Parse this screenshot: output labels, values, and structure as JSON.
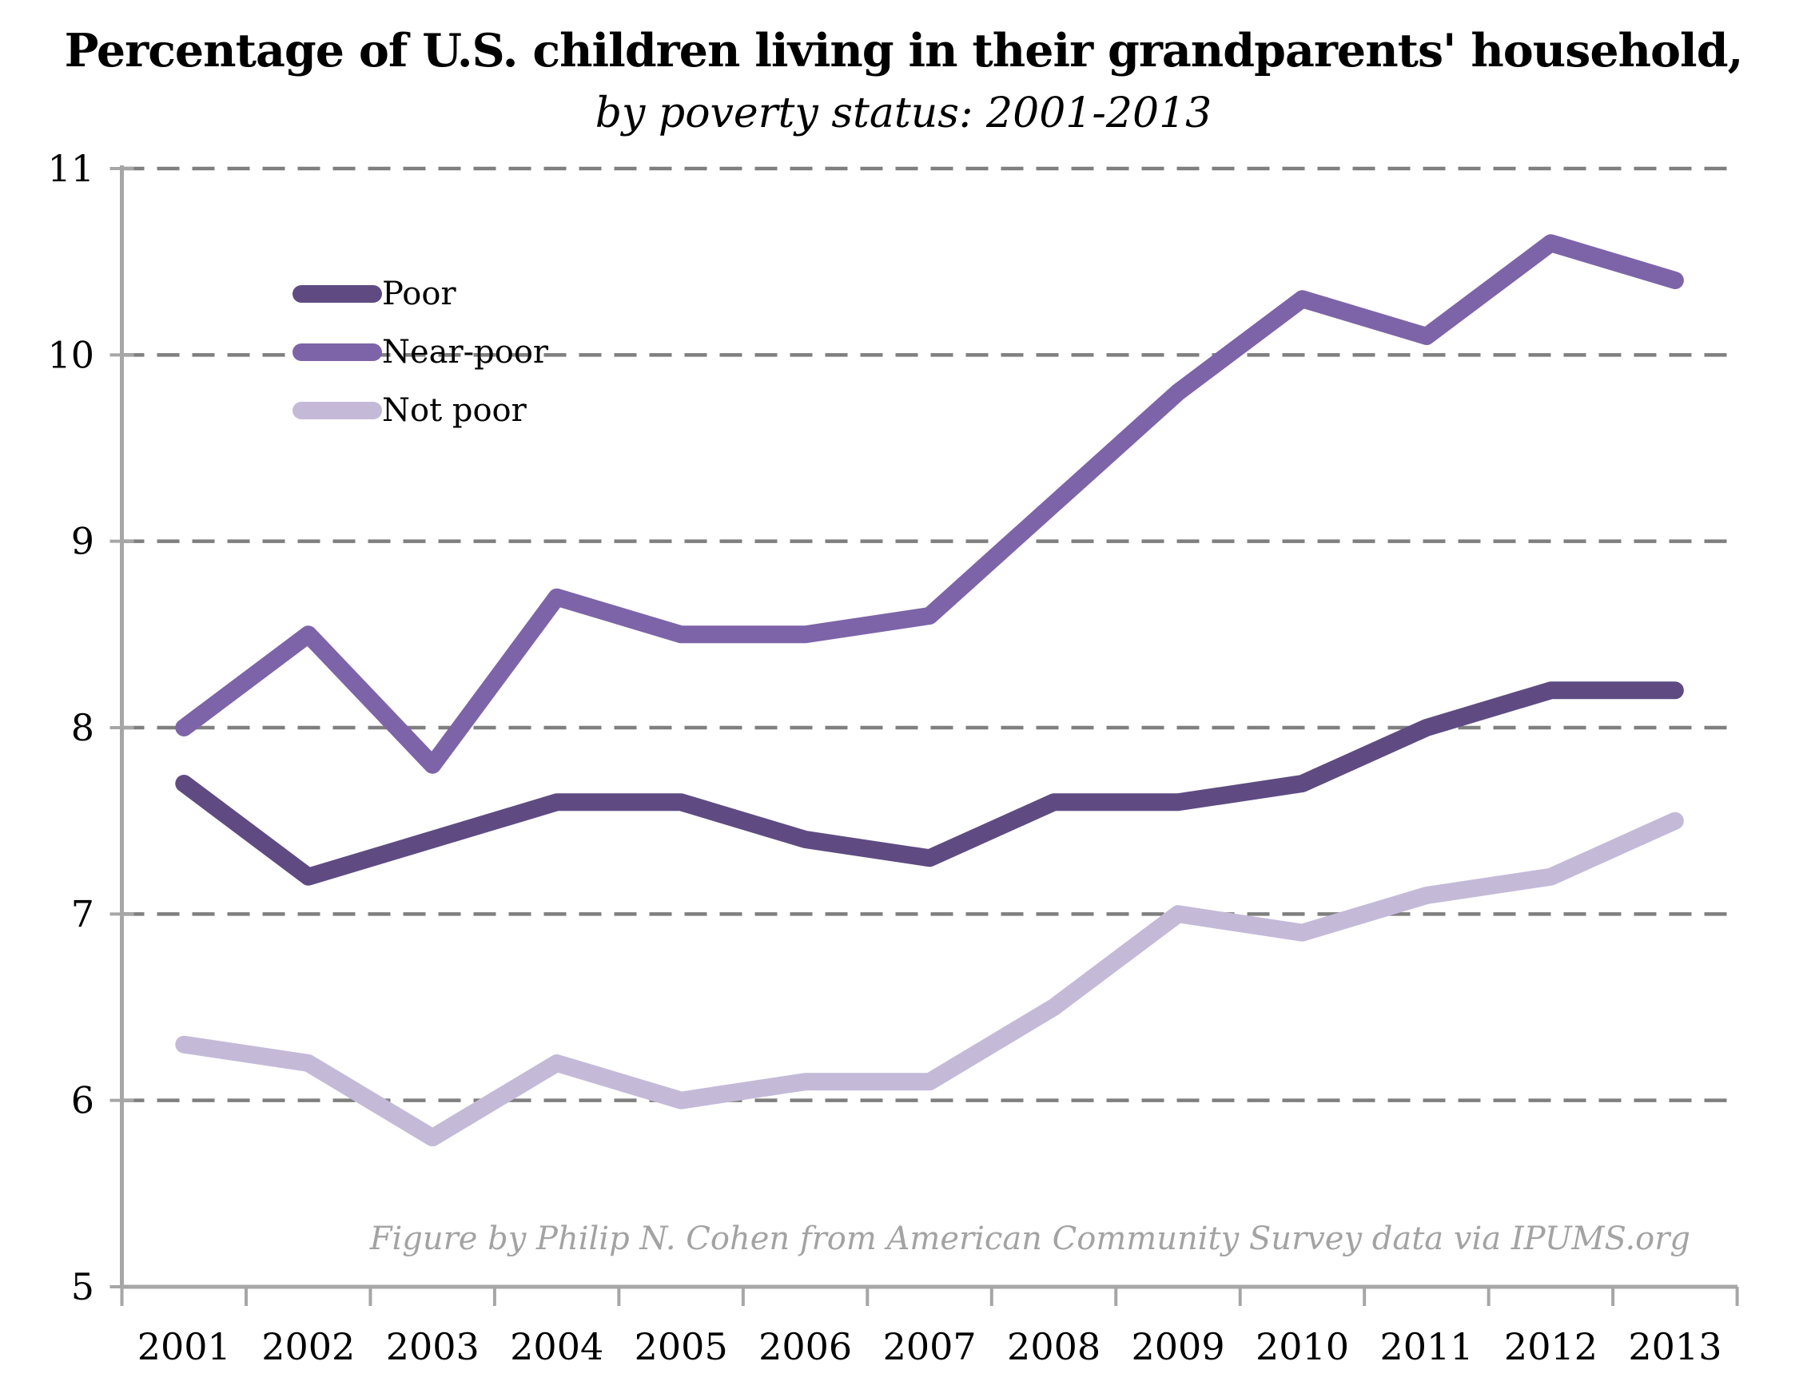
{
  "title": "Percentage of U.S. children living in their grandparents' household,",
  "subtitle": "by poverty status: 2001-2013",
  "attribution": "Figure by Philip N. Cohen from American Community Survey data via IPUMS.org",
  "chart_data": {
    "type": "line",
    "title": "Percentage of U.S. children living in their grandparents' household, by poverty status: 2001-2013",
    "categories": [
      "2001",
      "2002",
      "2003",
      "2004",
      "2005",
      "2006",
      "2007",
      "2008",
      "2009",
      "2010",
      "2011",
      "2012",
      "2013"
    ],
    "series": [
      {
        "name": "Poor",
        "color": "#5f4b82",
        "values": [
          7.7,
          7.2,
          7.4,
          7.6,
          7.6,
          7.4,
          7.3,
          7.6,
          7.6,
          7.7,
          8.0,
          8.2,
          8.2
        ]
      },
      {
        "name": "Near-poor",
        "color": "#7d64a8",
        "values": [
          8.0,
          8.5,
          7.8,
          8.7,
          8.5,
          8.5,
          8.6,
          9.2,
          9.8,
          10.3,
          10.1,
          10.6,
          10.4
        ]
      },
      {
        "name": "Not poor",
        "color": "#c4bad8",
        "values": [
          6.3,
          6.2,
          5.8,
          6.2,
          6.0,
          6.1,
          6.1,
          6.5,
          7.0,
          6.9,
          7.1,
          7.2,
          7.5
        ]
      }
    ],
    "xlabel": "",
    "ylabel": "",
    "ylim": [
      5,
      11
    ],
    "y_ticks": [
      5,
      6,
      7,
      8,
      9,
      10,
      11
    ],
    "grid": "horizontal-dashed",
    "legend_position": "inside-upper-left"
  },
  "colors": {
    "background": "#ffffff",
    "axis": "#a6a6a6",
    "gridline": "#7f7f7f",
    "text": "#000000",
    "attribution_text": "#a3a3a3"
  }
}
